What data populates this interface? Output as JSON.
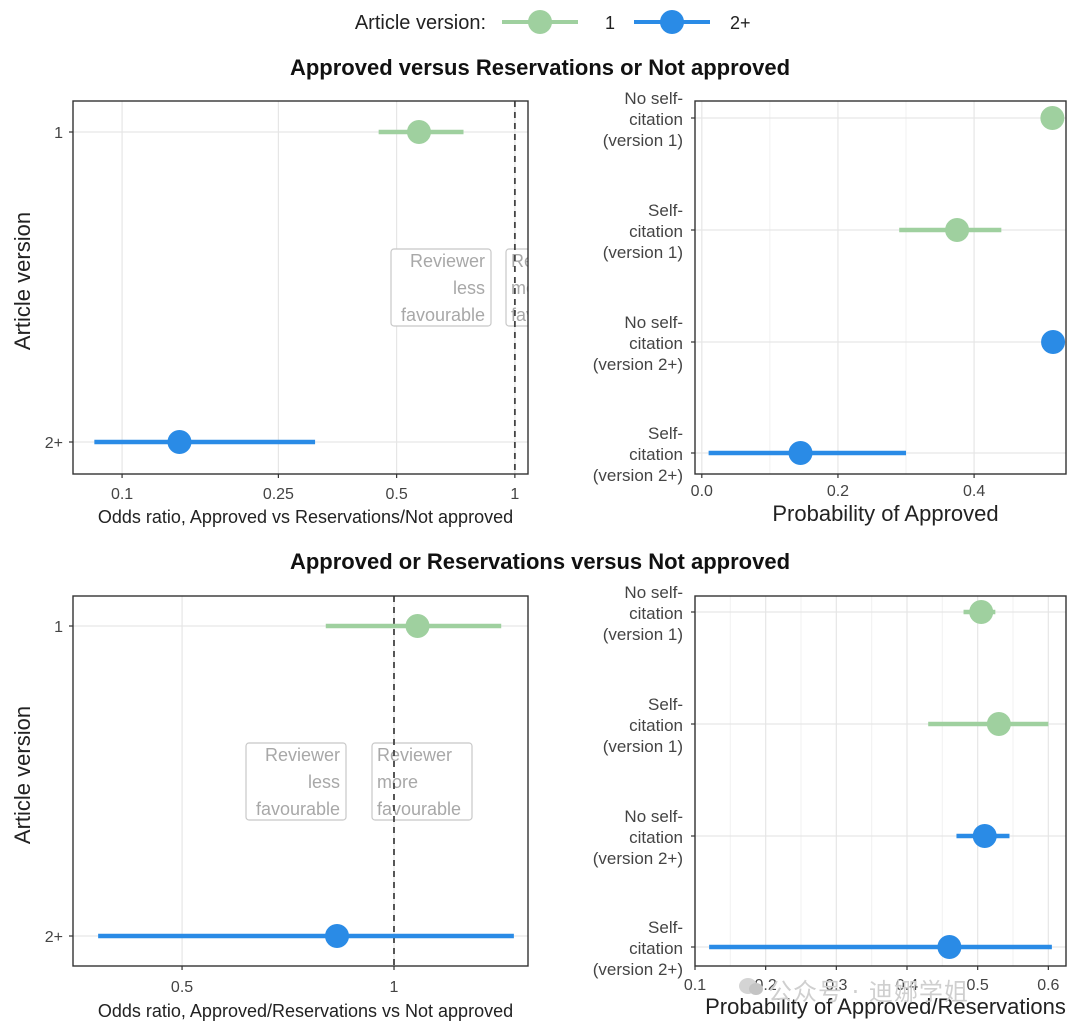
{
  "legend": {
    "title": "Article version:",
    "items": [
      {
        "label": "1",
        "color": "#9fd09f"
      },
      {
        "label": "2+",
        "color": "#2a8be6"
      }
    ]
  },
  "colors": {
    "v1": "#9fd09f",
    "v2": "#2a8be6",
    "frame": "#333333",
    "grid": "#e6e6e6",
    "note": "#a8a8a8"
  },
  "panels": [
    {
      "title": "Approved versus Reservations or Not approved",
      "odds": {
        "ylabel": "Article version",
        "xlabel": "Odds ratio, Approved vs Reservations/Not approved",
        "scale": "log",
        "xlim": [
          0.075,
          1.08
        ],
        "ticks": [
          {
            "v": 0.1,
            "label": "0.1"
          },
          {
            "v": 0.25,
            "label": "0.25"
          },
          {
            "v": 0.5,
            "label": "0.5"
          },
          {
            "v": 1,
            "label": "1"
          }
        ],
        "refline": 1,
        "categories": [
          "1",
          "2+"
        ],
        "points": [
          {
            "cat": "1",
            "series": "1",
            "est": 0.57,
            "lo": 0.45,
            "hi": 0.74
          },
          {
            "cat": "2+",
            "series": "2+",
            "est": 0.14,
            "lo": 0.085,
            "hi": 0.31
          }
        ],
        "notes": [
          {
            "side": "left",
            "lines": [
              "Reviewer",
              "less",
              "favourable"
            ]
          },
          {
            "side": "right",
            "lines": [
              "Reviewer",
              "more",
              "favourable"
            ]
          }
        ]
      },
      "prob": {
        "xlabel": "Probability of Approved",
        "xlim": [
          -0.01,
          0.535
        ],
        "ticks": [
          {
            "v": 0,
            "label": "0.0"
          },
          {
            "v": 0.2,
            "label": "0.2"
          },
          {
            "v": 0.4,
            "label": "0.4"
          }
        ],
        "categories": [
          {
            "lines": [
              "No self-",
              "citation",
              "(version 1)"
            ]
          },
          {
            "lines": [
              "Self-",
              "citation",
              "(version 1)"
            ]
          },
          {
            "lines": [
              "No self-",
              "citation",
              "(version 2+)"
            ]
          },
          {
            "lines": [
              "Self-",
              "citation",
              "(version 2+)"
            ]
          }
        ],
        "points": [
          {
            "series": "1",
            "est": 0.515,
            "lo": 0.51,
            "hi": 0.52
          },
          {
            "series": "1",
            "est": 0.375,
            "lo": 0.29,
            "hi": 0.44
          },
          {
            "series": "2+",
            "est": 0.516,
            "lo": 0.511,
            "hi": 0.521
          },
          {
            "series": "2+",
            "est": 0.145,
            "lo": 0.01,
            "hi": 0.3
          }
        ]
      }
    },
    {
      "title": "Approved or Reservations versus Not approved",
      "odds": {
        "ylabel": "Article version",
        "xlabel": "Odds ratio, Approved/Reservations vs Not approved",
        "scale": "log",
        "xlim": [
          0.35,
          1.55
        ],
        "ticks": [
          {
            "v": 0.5,
            "label": "0.5"
          },
          {
            "v": 1,
            "label": "1"
          }
        ],
        "refline": 1,
        "categories": [
          "1",
          "2+"
        ],
        "points": [
          {
            "cat": "1",
            "series": "1",
            "est": 1.08,
            "lo": 0.8,
            "hi": 1.42
          },
          {
            "cat": "2+",
            "series": "2+",
            "est": 0.83,
            "lo": 0.38,
            "hi": 1.48
          }
        ],
        "notes": [
          {
            "side": "left",
            "lines": [
              "Reviewer",
              "less",
              "favourable"
            ]
          },
          {
            "side": "right",
            "lines": [
              "Reviewer",
              "more",
              "favourable"
            ]
          }
        ]
      },
      "prob": {
        "xlabel": "Probability of Approved/Reservations",
        "xlim": [
          0.1,
          0.625
        ],
        "ticks": [
          {
            "v": 0.1,
            "label": "0.1"
          },
          {
            "v": 0.2,
            "label": "0.2"
          },
          {
            "v": 0.3,
            "label": "0.3"
          },
          {
            "v": 0.4,
            "label": "0.4"
          },
          {
            "v": 0.5,
            "label": "0.5"
          },
          {
            "v": 0.6,
            "label": "0.6"
          }
        ],
        "categories": [
          {
            "lines": [
              "No self-",
              "citation",
              "(version 1)"
            ]
          },
          {
            "lines": [
              "Self-",
              "citation",
              "(version 1)"
            ]
          },
          {
            "lines": [
              "No self-",
              "citation",
              "(version 2+)"
            ]
          },
          {
            "lines": [
              "Self-",
              "citation",
              "(version 2+)"
            ]
          }
        ],
        "points": [
          {
            "series": "1",
            "est": 0.505,
            "lo": 0.48,
            "hi": 0.525
          },
          {
            "series": "1",
            "est": 0.53,
            "lo": 0.43,
            "hi": 0.6
          },
          {
            "series": "2+",
            "est": 0.51,
            "lo": 0.47,
            "hi": 0.545
          },
          {
            "series": "2+",
            "est": 0.46,
            "lo": 0.12,
            "hi": 0.605
          }
        ]
      }
    }
  ],
  "watermark": "公众号 · 迪娜学姐"
}
